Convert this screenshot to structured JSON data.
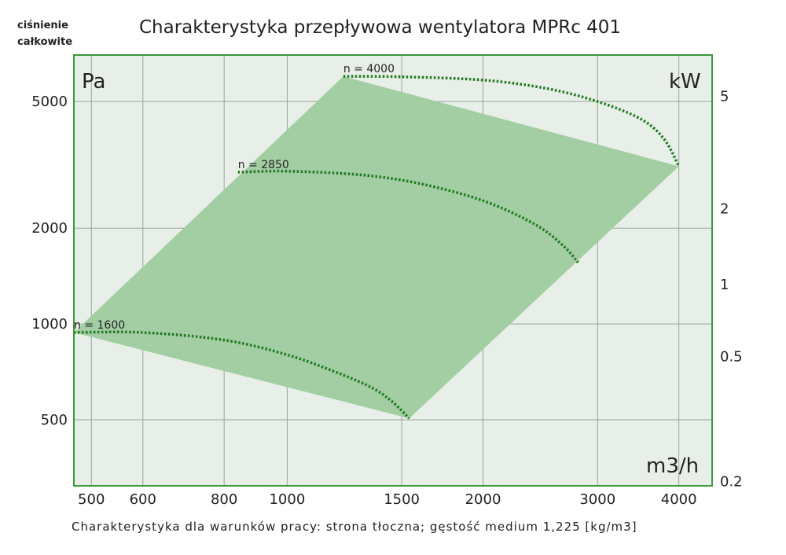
{
  "chart_data": {
    "type": "line",
    "title": "Charakterystyka przepływowa wentylatora MPRc 401",
    "top_left_label_line1": "ciśnienie",
    "top_left_label_line2": "całkowite",
    "footer": "Charakterystyka dla warunków pracy: strona tłoczna; gęstość medium 1,225 [kg/m3]",
    "ylabel": "Pa",
    "y2label": "kW",
    "xlabel": "m3/h",
    "x_scale": "log",
    "y_scale": "log",
    "xlim": [
      470,
      4500
    ],
    "ylim": [
      310,
      7000
    ],
    "x_ticks": [
      500,
      600,
      800,
      1000,
      1500,
      2000,
      3000,
      4000
    ],
    "x_tick_labels": [
      "500",
      "600",
      "800",
      "1000",
      "1500",
      "2000",
      "3000",
      "4000"
    ],
    "y_ticks": [
      500,
      1000,
      2000,
      5000
    ],
    "y_tick_labels": [
      "500",
      "1000",
      "2000",
      "5000"
    ],
    "y2_ticks": [
      {
        "label": "5",
        "at_y": 5200
      },
      {
        "label": "2",
        "at_y": 2300
      },
      {
        "label": "1",
        "at_y": 1330
      },
      {
        "label": "0.5",
        "at_y": 790
      },
      {
        "label": "0.2",
        "at_y": 320
      }
    ],
    "grid": true,
    "area_polygon": [
      [
        470,
        940
      ],
      [
        1220,
        6000
      ],
      [
        4000,
        3130
      ],
      [
        1540,
        505
      ]
    ],
    "series": [
      {
        "name": "n = 4000",
        "x": [
          1220,
          1500,
          2000,
          2500,
          3000,
          3500,
          3800,
          4000
        ],
        "y": [
          6000,
          5980,
          5840,
          5500,
          5000,
          4400,
          3800,
          3130
        ]
      },
      {
        "name": "n = 2850",
        "x": [
          840,
          1000,
          1300,
          1600,
          2000,
          2400,
          2650,
          2800
        ],
        "y": [
          3000,
          3020,
          2940,
          2760,
          2440,
          2060,
          1770,
          1560
        ]
      },
      {
        "name": "n = 1600",
        "x": [
          470,
          600,
          800,
          1000,
          1200,
          1350,
          1450,
          1540
        ],
        "y": [
          940,
          940,
          890,
          800,
          700,
          630,
          570,
          505
        ]
      }
    ]
  },
  "colors": {
    "plot_bg": "#e8efe8",
    "area_fill": "#a3cda3",
    "frame": "#3c9a3c",
    "curve": "#1f7a1f",
    "grid": "#9aa39a"
  }
}
